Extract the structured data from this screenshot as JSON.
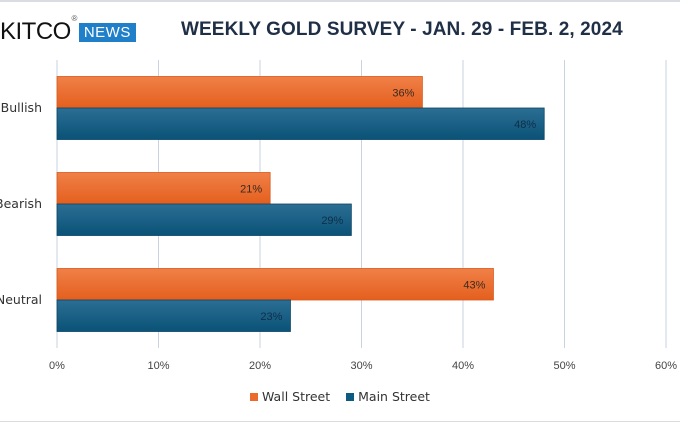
{
  "header": {
    "logo_text": "KITCO",
    "logo_registered": "®",
    "logo_badge": "NEWS"
  },
  "colors": {
    "wall_street": "#ec6a2a",
    "main_street": "#0f5a80",
    "gridline": "#c9d3df",
    "title": "#1f2f46",
    "news_badge": "#1f7fc9"
  },
  "chart_data": {
    "type": "bar",
    "orientation": "horizontal",
    "title": "WEEKLY GOLD SURVEY - JAN. 29 - FEB. 2, 2024",
    "categories": [
      "Bullish",
      "Bearish",
      "Neutral"
    ],
    "series": [
      {
        "name": "Wall Street",
        "values": [
          36,
          21,
          43
        ],
        "labels": [
          "36%",
          "21%",
          "43%"
        ]
      },
      {
        "name": "Main Street",
        "values": [
          48,
          29,
          23
        ],
        "labels": [
          "48%",
          "29%",
          "23%"
        ]
      }
    ],
    "xlim": [
      0,
      60
    ],
    "xticks": [
      0,
      10,
      20,
      30,
      40,
      50,
      60
    ],
    "xtick_labels": [
      "0%",
      "10%",
      "20%",
      "30%",
      "40%",
      "50%",
      "60%"
    ],
    "xlabel": "",
    "ylabel": "",
    "grid": true,
    "legend_position": "bottom"
  }
}
